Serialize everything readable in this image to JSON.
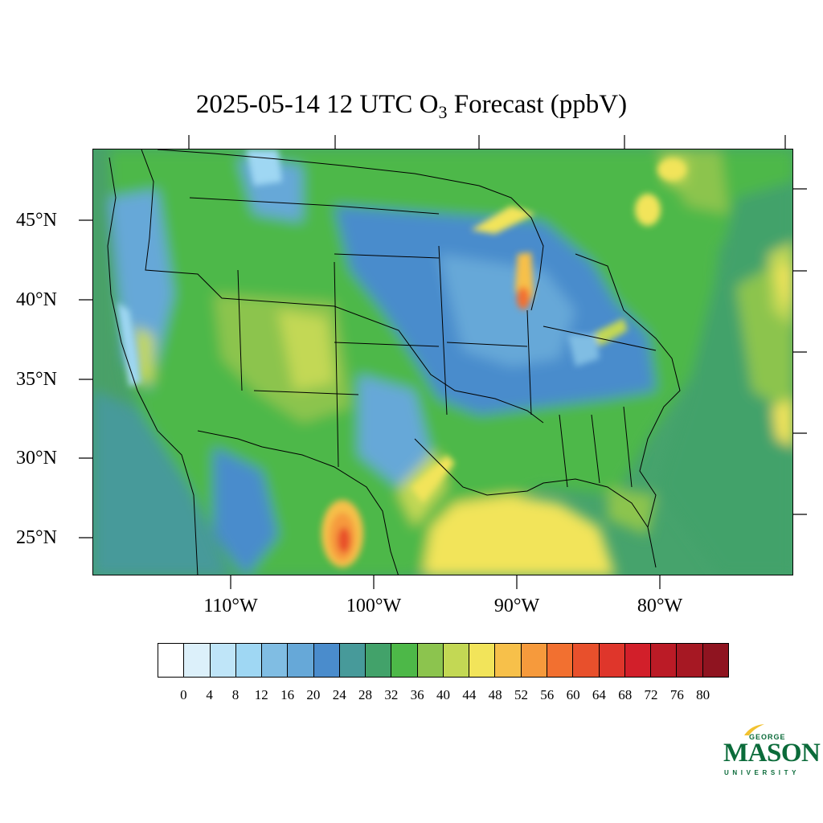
{
  "title": {
    "prefix": "2025-05-14 12 UTC O",
    "subscript": "3",
    "suffix": " Forecast (ppbV)"
  },
  "map": {
    "region": "Contiguous United States",
    "lon_range": [
      -119,
      -70
    ],
    "lat_range": [
      22.8,
      49.6
    ],
    "lat_labels": [
      "45°N",
      "40°N",
      "35°N",
      "30°N",
      "25°N"
    ],
    "lon_labels": [
      "110°W",
      "100°W",
      "90°W",
      "80°W"
    ]
  },
  "colorbar": {
    "colors": [
      "#ffffff",
      "#dcf0fa",
      "#bfe5f8",
      "#9fd7f3",
      "#80bde3",
      "#66a8d8",
      "#4a8ccc",
      "#479a9a",
      "#42a26a",
      "#4db848",
      "#8cc44e",
      "#c3d854",
      "#f2e45a",
      "#f7c04a",
      "#f69a3c",
      "#f27030",
      "#e8502c",
      "#df362b",
      "#d21f2a",
      "#bb1b26",
      "#a61823",
      "#8f1420"
    ],
    "labels": [
      "0",
      "4",
      "8",
      "12",
      "16",
      "20",
      "24",
      "28",
      "32",
      "36",
      "40",
      "44",
      "48",
      "52",
      "56",
      "60",
      "64",
      "68",
      "72",
      "76",
      "80"
    ]
  },
  "logo": {
    "line1": "GEORGE",
    "line2": "MASON",
    "line3": "UNIVERSITY",
    "brand_green": "#0b6b3a",
    "brand_gold": "#f2c230"
  }
}
